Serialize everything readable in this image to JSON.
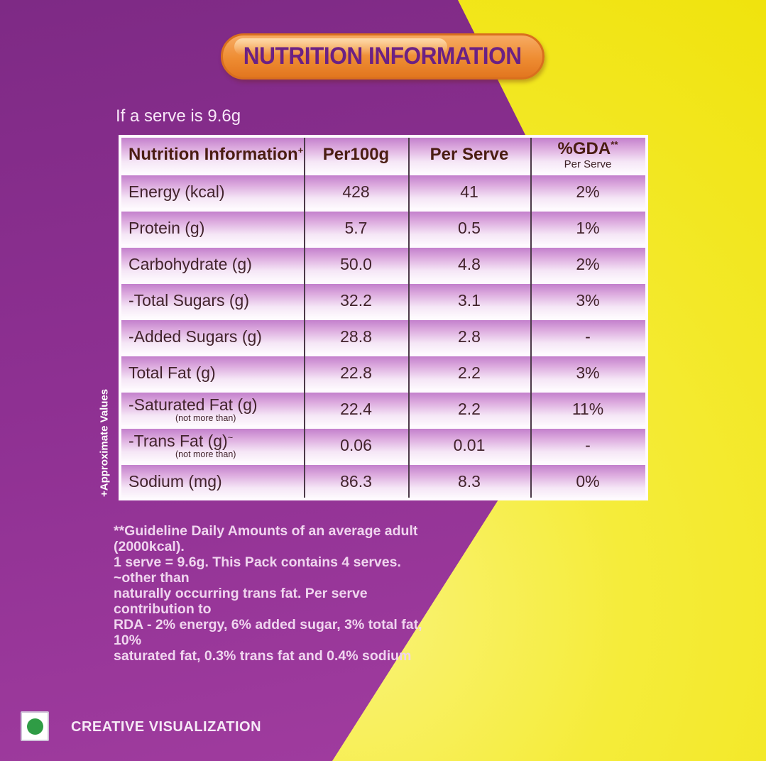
{
  "banner": {
    "title": "NUTRITION INFORMATION"
  },
  "intro": {
    "serve_note": "If a serve is 9.6g"
  },
  "table": {
    "side_note": "+Approximate Values",
    "header": {
      "col1": "Nutrition Information",
      "col1_sup": "+",
      "col2": "Per100g",
      "col3": "Per Serve",
      "col4": "%GDA",
      "col4_sup": "**",
      "col4_sub": "Per Serve"
    },
    "rows": [
      {
        "label": "Energy (kcal)",
        "per100g": "428",
        "per_serve": "41",
        "gda": "2%"
      },
      {
        "label": "Protein (g)",
        "per100g": "5.7",
        "per_serve": "0.5",
        "gda": "1%"
      },
      {
        "label": "Carbohydrate (g)",
        "per100g": "50.0",
        "per_serve": "4.8",
        "gda": "2%"
      },
      {
        "label": "-Total Sugars (g)",
        "per100g": "32.2",
        "per_serve": "3.1",
        "gda": "3%"
      },
      {
        "label": "-Added Sugars (g)",
        "per100g": "28.8",
        "per_serve": "2.8",
        "gda": "-"
      },
      {
        "label": "Total Fat (g)",
        "per100g": "22.8",
        "per_serve": "2.2",
        "gda": "3%"
      },
      {
        "label": "-Saturated Fat (g)",
        "sublabel": "(not more than)",
        "per100g": "22.4",
        "per_serve": "2.2",
        "gda": "11%"
      },
      {
        "label": "-Trans Fat (g)",
        "label_sup": "~",
        "sublabel": "(not more than)",
        "per100g": "0.06",
        "per_serve": "0.01",
        "gda": "-"
      },
      {
        "label": "Sodium (mg)",
        "per100g": "86.3",
        "per_serve": "8.3",
        "gda": "0%"
      }
    ]
  },
  "footnote": {
    "text": "**Guideline Daily Amounts of an average adult (2000kcal).\n1 serve = 9.6g. This Pack contains 4 serves. ~other than\nnaturally occurring trans fat. Per serve contribution to\nRDA - 2% energy, 6% added sugar, 3% total fat, 10%\nsaturated fat, 0.3% trans fat and 0.4% sodium"
  },
  "footer": {
    "veg_symbol": "green-dot-vegetarian-mark",
    "label": "CREATIVE VISUALIZATION"
  },
  "colors": {
    "background_purple": "#8e3092",
    "background_yellow": "#f3e81c",
    "banner_orange": "#ee8c32",
    "banner_text_purple": "#6b2184",
    "table_row_top": "#c380cc",
    "table_row_bottom": "#fdf8fd",
    "table_text": "#42232c",
    "header_text": "#4a1d12",
    "veg_green": "#2f9c45"
  }
}
